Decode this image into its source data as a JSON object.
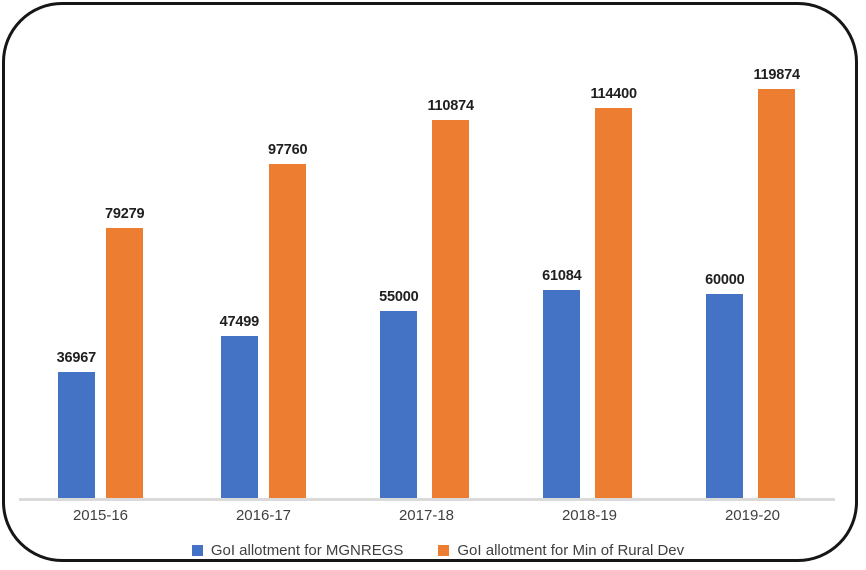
{
  "chart_data": {
    "type": "bar",
    "categories": [
      "2015-16",
      "2016-17",
      "2017-18",
      "2018-19",
      "2019-20"
    ],
    "series": [
      {
        "name": "GoI allotment for MGNREGS",
        "color": "#4472C4",
        "values": [
          36967,
          47499,
          55000,
          61084,
          60000
        ]
      },
      {
        "name": "GoI allotment for Min of Rural Dev",
        "color": "#ED7D31",
        "values": [
          79279,
          97760,
          110874,
          114400,
          119874
        ]
      }
    ],
    "title": "",
    "xlabel": "",
    "ylabel": "",
    "ylim": [
      0,
      131500
    ],
    "grid": false,
    "legend_position": "bottom",
    "data_labels": true
  },
  "colors": {
    "frame_border": "#161616",
    "axis_line": "#DADADA",
    "data_label_text": "#1F1F1F",
    "axis_label_text": "#3F3F3F",
    "background": "#FFFFFF"
  }
}
